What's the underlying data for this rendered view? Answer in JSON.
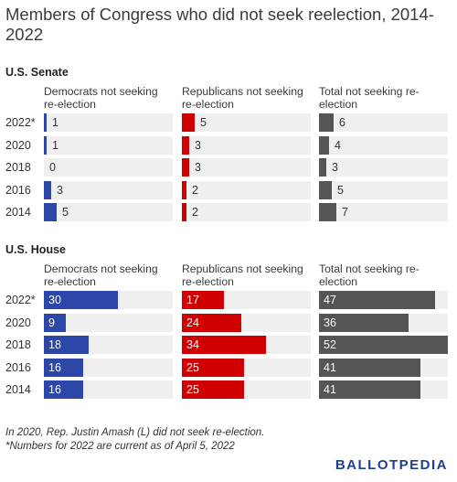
{
  "title": "Members of Congress who did not seek reelection, 2014-2022",
  "colors": {
    "democrat": "#2c47a8",
    "republican": "#d10000",
    "total": "#555555",
    "track": "#efefef"
  },
  "chart_data": [
    {
      "type": "bar",
      "section": "U.S. Senate",
      "categories": [
        "2022*",
        "2020",
        "2018",
        "2016",
        "2014"
      ],
      "series": [
        {
          "name": "Democrats not seeking re-election",
          "values": [
            1,
            1,
            0,
            3,
            5
          ],
          "color": "#2c47a8"
        },
        {
          "name": "Republicans not seeking re-election",
          "values": [
            5,
            3,
            3,
            2,
            2
          ],
          "color": "#d10000"
        },
        {
          "name": "Total not seeking re-election",
          "values": [
            6,
            4,
            3,
            5,
            7
          ],
          "color": "#555555"
        }
      ],
      "xlim": [
        0,
        52
      ]
    },
    {
      "type": "bar",
      "section": "U.S. House",
      "categories": [
        "2022*",
        "2020",
        "2018",
        "2016",
        "2014"
      ],
      "series": [
        {
          "name": "Democrats not seeking re-election",
          "values": [
            30,
            9,
            18,
            16,
            16
          ],
          "color": "#2c47a8"
        },
        {
          "name": "Republicans not seeking re-election",
          "values": [
            17,
            24,
            34,
            25,
            25
          ],
          "color": "#d10000"
        },
        {
          "name": "Total not seeking re-election",
          "values": [
            47,
            36,
            52,
            41,
            41
          ],
          "color": "#555555"
        }
      ],
      "xlim": [
        0,
        52
      ]
    }
  ],
  "footnotes": [
    "In 2020, Rep. Justin Amash (L) did not seek re-election.",
    "*Numbers for 2022 are current as of April 5, 2022"
  ],
  "logo": {
    "part1": "BALLOT",
    "part2": "PEDIA"
  }
}
